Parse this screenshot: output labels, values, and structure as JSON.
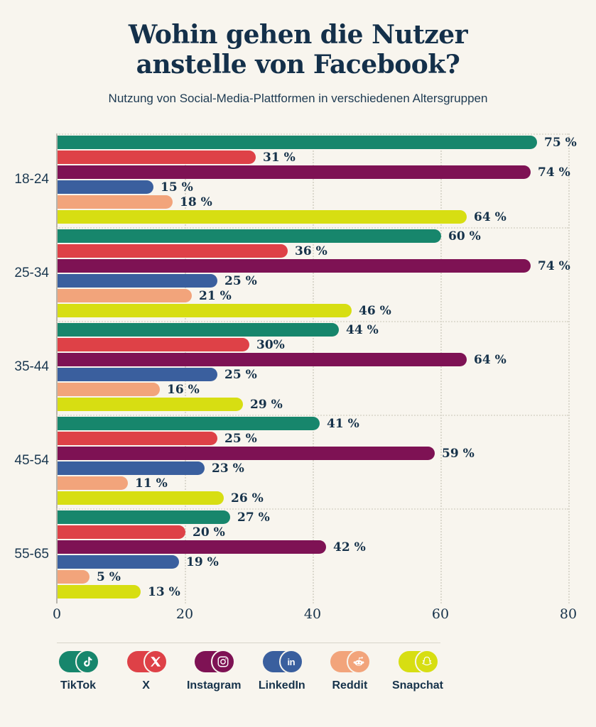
{
  "header": {
    "title_line1": "Wohin gehen die Nutzer",
    "title_line2": "anstelle von Facebook?",
    "subtitle": "Nutzung von Social-Media-Plattformen in verschiedenen Altersgruppen"
  },
  "colors": {
    "background": "#f8f5ee",
    "text_navy": "#16324a",
    "tiktok": "#17866c",
    "x": "#de4147",
    "instagram": "#7e1254",
    "linkedin": "#3a5f9e",
    "reddit": "#f2a47b",
    "snapchat": "#d7de12",
    "gridline": "#dbd8cd",
    "axis_line": "#b8b5ad"
  },
  "chart_data": {
    "type": "bar",
    "orientation": "horizontal",
    "title": "Wohin gehen die Nutzer anstelle von Facebook?",
    "subtitle": "Nutzung von Social-Media-Plattformen in verschiedenen Altersgruppen",
    "categories": [
      "18-24",
      "25-34",
      "35-44",
      "45-54",
      "55-65"
    ],
    "series": [
      {
        "name": "TikTok",
        "color": "#17866c",
        "icon": "tiktok-icon",
        "values": [
          75,
          60,
          44,
          41,
          27
        ],
        "labels": [
          "75 %",
          "60 %",
          "44 %",
          "41 %",
          "27 %"
        ]
      },
      {
        "name": "X",
        "color": "#de4147",
        "icon": "x-icon",
        "values": [
          31,
          36,
          30,
          25,
          20
        ],
        "labels": [
          "31 %",
          "36 %",
          "30%",
          "25 %",
          "20 %"
        ]
      },
      {
        "name": "Instagram",
        "color": "#7e1254",
        "icon": "instagram-icon",
        "values": [
          74,
          74,
          64,
          59,
          42
        ],
        "labels": [
          "74 %",
          "74 %",
          "64 %",
          "59 %",
          "42 %"
        ]
      },
      {
        "name": "LinkedIn",
        "color": "#3a5f9e",
        "icon": "linkedin-icon",
        "values": [
          15,
          25,
          25,
          23,
          19
        ],
        "labels": [
          "15 %",
          "25 %",
          "25 %",
          "23 %",
          "19 %"
        ]
      },
      {
        "name": "Reddit",
        "color": "#f2a47b",
        "icon": "reddit-icon",
        "values": [
          18,
          21,
          16,
          11,
          5
        ],
        "labels": [
          "18 %",
          "21 %",
          "16 %",
          "11 %",
          "5 %"
        ]
      },
      {
        "name": "Snapchat",
        "color": "#d7de12",
        "icon": "snapchat-icon",
        "values": [
          64,
          46,
          29,
          26,
          13
        ],
        "labels": [
          "64 %",
          "46 %",
          "29 %",
          "26 %",
          "13 %"
        ]
      }
    ],
    "xlim": [
      0,
      80
    ],
    "xticks": [
      0,
      20,
      40,
      60,
      80
    ],
    "grid": "vertical-dotted-with-group-separators",
    "legend_position": "bottom",
    "value_labels": "right-of-bar"
  },
  "legend": {
    "items": [
      {
        "label": "TikTok",
        "icon": "tiktok-icon",
        "color": "#17866c"
      },
      {
        "label": "X",
        "icon": "x-icon",
        "color": "#de4147"
      },
      {
        "label": "Instagram",
        "icon": "instagram-icon",
        "color": "#7e1254"
      },
      {
        "label": "LinkedIn",
        "icon": "linkedin-icon",
        "color": "#3a5f9e"
      },
      {
        "label": "Reddit",
        "icon": "reddit-icon",
        "color": "#f2a47b"
      },
      {
        "label": "Snapchat",
        "icon": "snapchat-icon",
        "color": "#d7de12"
      }
    ]
  }
}
